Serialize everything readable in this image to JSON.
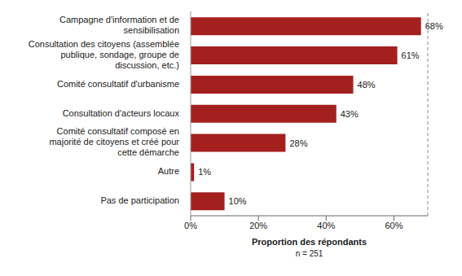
{
  "chart_data": {
    "type": "bar",
    "orientation": "horizontal",
    "categories": [
      "Campagne d'information et de sensibilisation",
      "Consultation des citoyens (assemblée publique, sondage, groupe de discussion, etc.)",
      "Comité consultatif d'urbanisme",
      "Consultation d'acteurs locaux",
      "Comité consultatif composé en majorité de citoyens et créé pour cette démarche",
      "Autre",
      "Pas de participation"
    ],
    "values": [
      68,
      61,
      48,
      43,
      28,
      1,
      10
    ],
    "value_labels": [
      "68%",
      "61%",
      "48%",
      "43%",
      "28%",
      "1%",
      "10%"
    ],
    "data_labels": true,
    "color": "#a3201f",
    "xlabel": "Proportion des répondants",
    "annotations": [
      "n = 251"
    ],
    "xlim": [
      0,
      70
    ],
    "xticks": [
      {
        "value": 0,
        "label": "0%"
      },
      {
        "value": 20,
        "label": "20%"
      },
      {
        "value": 40,
        "label": "40%"
      },
      {
        "value": 60,
        "label": "60%"
      }
    ],
    "grid": false
  }
}
